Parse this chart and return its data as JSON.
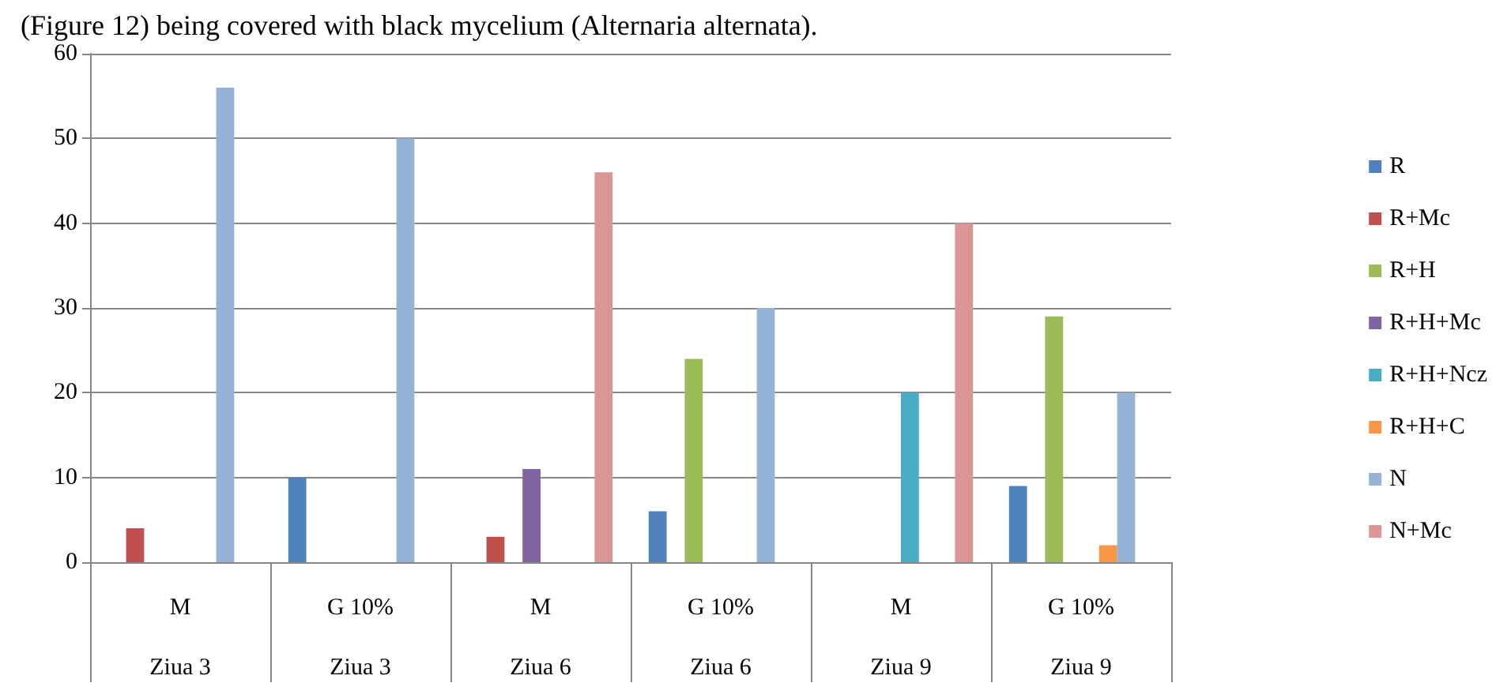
{
  "chart_data": {
    "type": "bar",
    "annotations": [
      "(Figure 12) being covered with black mycelium (Alternaria alternata)."
    ],
    "categories": [
      "M\nZiua 3",
      "G 10%\nZiua 3",
      "M\nZiua 6",
      "G 10%\nZiua 6",
      "M\nZiua 9",
      "G 10%\nZiua 9"
    ],
    "series": [
      {
        "name": "R",
        "color": "#4f81bd",
        "values": [
          null,
          10,
          null,
          6,
          null,
          9
        ]
      },
      {
        "name": "R+Mc",
        "color": "#c0504d",
        "values": [
          4,
          null,
          3,
          null,
          null,
          null
        ]
      },
      {
        "name": "R+H",
        "color": "#9bbb59",
        "values": [
          null,
          null,
          null,
          24,
          null,
          29
        ]
      },
      {
        "name": "R+H+Mc",
        "color": "#8064a2",
        "values": [
          null,
          null,
          11,
          null,
          null,
          null
        ]
      },
      {
        "name": "R+H+Ncz",
        "color": "#4bacc6",
        "values": [
          null,
          null,
          null,
          null,
          20,
          null
        ]
      },
      {
        "name": "R+H+C",
        "color": "#f79646",
        "values": [
          null,
          null,
          null,
          null,
          null,
          2
        ]
      },
      {
        "name": "N",
        "color": "#95b3d7",
        "values": [
          56,
          50,
          null,
          30,
          null,
          20
        ]
      },
      {
        "name": "N+Mc",
        "color": "#d99694",
        "values": [
          null,
          null,
          46,
          null,
          40,
          null
        ]
      }
    ],
    "ylim": [
      0,
      60
    ],
    "yticks": [
      0,
      10,
      20,
      30,
      40,
      50,
      60
    ],
    "grid": "y",
    "legend": "right"
  }
}
